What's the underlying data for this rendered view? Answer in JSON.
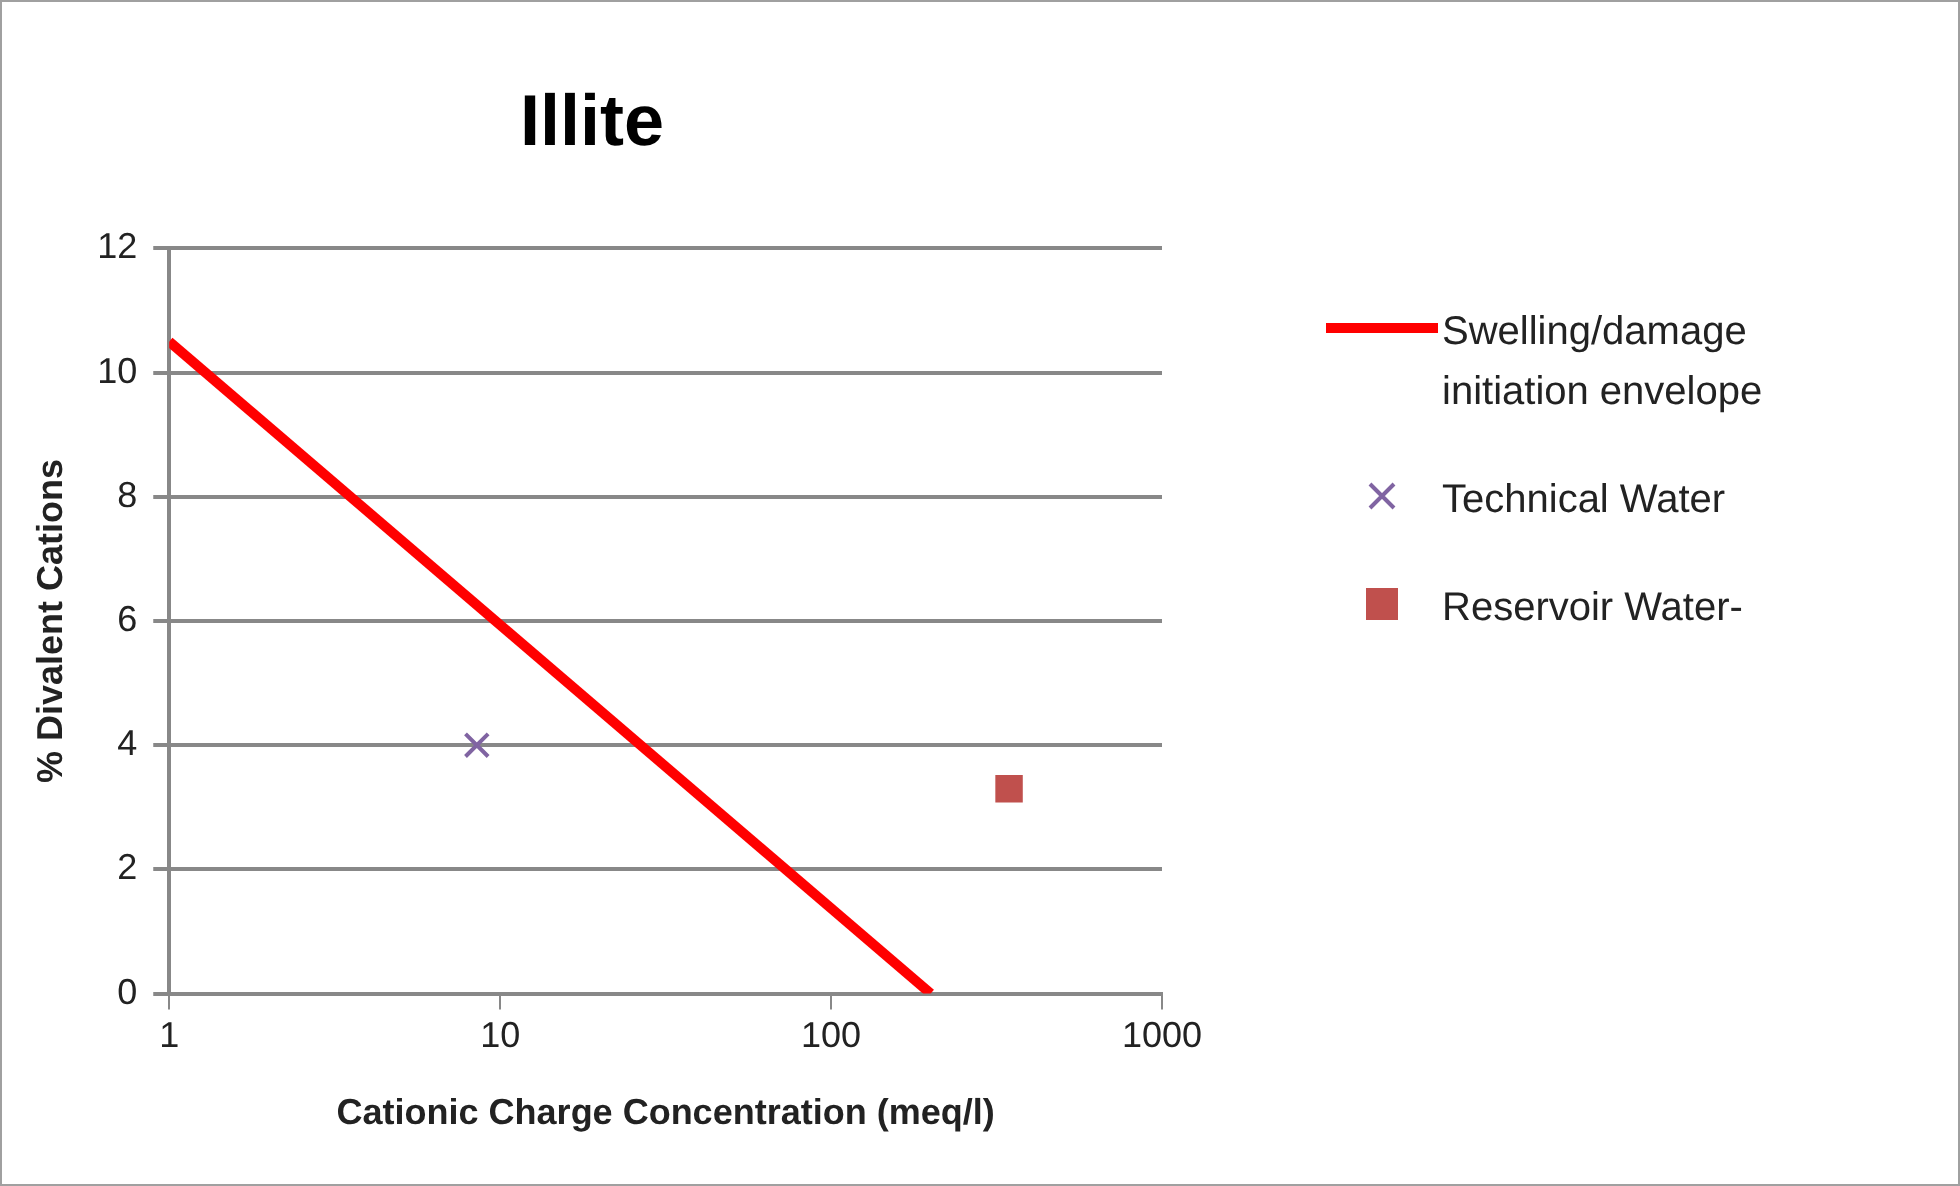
{
  "chart_data": {
    "type": "scatter",
    "title": "Illite",
    "xlabel": "Cationic Charge Concentration (meq/l)",
    "ylabel": "% Divalent Cations",
    "log": "x",
    "xlim": [
      1,
      1000
    ],
    "xticks": [
      1,
      10,
      100,
      1000
    ],
    "ylim": [
      0,
      12
    ],
    "yticks": [
      0,
      2,
      4,
      6,
      8,
      10,
      12
    ],
    "grid": "y",
    "legend": "right",
    "series": [
      {
        "name": "Swelling/damage initiation envelope",
        "type": "line",
        "color": "#ff0000",
        "marker": "none",
        "line_style": "solid",
        "x": [
          1,
          200
        ],
        "values": [
          10.5,
          0
        ]
      },
      {
        "name": "Technical Water",
        "type": "scatter",
        "color": "#8064a2",
        "marker": "cross",
        "x": [
          8.5
        ],
        "values": [
          4
        ]
      },
      {
        "name": "Reservoir Water-",
        "type": "scatter",
        "color": "#c0504d",
        "marker": "square",
        "x": [
          345
        ],
        "values": [
          3.3
        ]
      }
    ]
  }
}
